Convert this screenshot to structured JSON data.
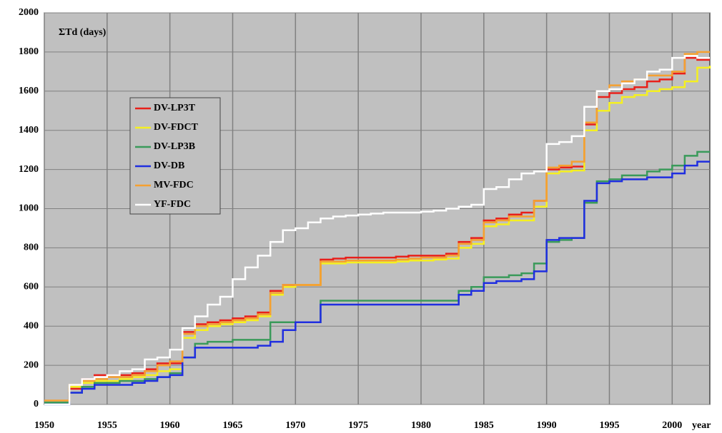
{
  "chart_data": {
    "type": "line",
    "drawstyle": "steps-post",
    "y_label": "ΣTd (days)",
    "x_label": "year",
    "x": [
      1950,
      1951,
      1952,
      1953,
      1954,
      1955,
      1956,
      1957,
      1958,
      1959,
      1960,
      1961,
      1962,
      1963,
      1964,
      1965,
      1966,
      1967,
      1968,
      1969,
      1970,
      1971,
      1972,
      1973,
      1974,
      1975,
      1976,
      1977,
      1978,
      1979,
      1980,
      1981,
      1982,
      1983,
      1984,
      1985,
      1986,
      1987,
      1988,
      1989,
      1990,
      1991,
      1992,
      1993,
      1994,
      1995,
      1996,
      1997,
      1998,
      1999,
      2000,
      2001,
      2002,
      2003
    ],
    "xlim": [
      1950,
      2003
    ],
    "xticks": [
      1950,
      1955,
      1960,
      1965,
      1970,
      1975,
      1980,
      1985,
      1990,
      1995,
      2000
    ],
    "ylim": [
      0,
      2000
    ],
    "yticks": [
      0,
      200,
      400,
      600,
      800,
      1000,
      1200,
      1400,
      1600,
      1800,
      2000
    ],
    "grid": true,
    "legend": "upper left",
    "series": [
      {
        "name": "DV-LP3T",
        "color": "#e8201a",
        "values": [
          10,
          10,
          80,
          130,
          150,
          150,
          150,
          160,
          180,
          210,
          210,
          370,
          410,
          420,
          430,
          440,
          450,
          470,
          580,
          610,
          610,
          610,
          740,
          745,
          750,
          750,
          750,
          750,
          755,
          760,
          760,
          760,
          770,
          830,
          850,
          940,
          950,
          970,
          980,
          1040,
          1200,
          1210,
          1215,
          1430,
          1570,
          1590,
          1610,
          1620,
          1650,
          1660,
          1690,
          1770,
          1760,
          1760
        ]
      },
      {
        "name": "DV-FDCT",
        "color": "#f5f020",
        "values": [
          10,
          10,
          90,
          110,
          120,
          120,
          130,
          140,
          150,
          170,
          180,
          340,
          380,
          400,
          410,
          420,
          430,
          450,
          560,
          600,
          610,
          610,
          720,
          720,
          725,
          725,
          725,
          725,
          730,
          735,
          735,
          740,
          745,
          800,
          820,
          910,
          920,
          940,
          940,
          1010,
          1180,
          1190,
          1195,
          1400,
          1500,
          1540,
          1570,
          1580,
          1600,
          1610,
          1620,
          1650,
          1720,
          1730
        ]
      },
      {
        "name": "DV-LP3B",
        "color": "#3a9a5a",
        "values": [
          10,
          10,
          60,
          90,
          110,
          110,
          120,
          120,
          130,
          140,
          160,
          240,
          310,
          320,
          320,
          330,
          330,
          330,
          420,
          420,
          420,
          420,
          530,
          530,
          530,
          530,
          530,
          530,
          530,
          530,
          530,
          530,
          530,
          580,
          600,
          650,
          650,
          660,
          670,
          720,
          830,
          840,
          850,
          1030,
          1140,
          1150,
          1170,
          1170,
          1190,
          1200,
          1220,
          1270,
          1290,
          1290
        ]
      },
      {
        "name": "DV-DB",
        "color": "#1f2ee0",
        "values": [
          0,
          0,
          60,
          80,
          100,
          100,
          100,
          110,
          120,
          140,
          150,
          240,
          290,
          290,
          290,
          290,
          290,
          300,
          320,
          380,
          420,
          420,
          510,
          510,
          510,
          510,
          510,
          510,
          510,
          510,
          510,
          510,
          510,
          560,
          580,
          620,
          630,
          630,
          640,
          680,
          840,
          850,
          850,
          1040,
          1130,
          1140,
          1150,
          1150,
          1160,
          1160,
          1180,
          1220,
          1240,
          1240
        ]
      },
      {
        "name": "MV-FDC",
        "color": "#f5a030",
        "values": [
          20,
          20,
          100,
          120,
          130,
          140,
          140,
          150,
          170,
          200,
          220,
          360,
          400,
          410,
          420,
          430,
          440,
          460,
          570,
          610,
          610,
          610,
          730,
          730,
          735,
          735,
          735,
          735,
          740,
          745,
          750,
          750,
          760,
          820,
          840,
          930,
          940,
          960,
          960,
          1040,
          1210,
          1220,
          1240,
          1440,
          1600,
          1630,
          1650,
          1660,
          1680,
          1680,
          1700,
          1790,
          1800,
          1800
        ]
      },
      {
        "name": "YF-FDC",
        "color": "#ffffff",
        "values": [
          0,
          0,
          100,
          130,
          140,
          150,
          170,
          180,
          230,
          240,
          280,
          390,
          450,
          510,
          550,
          640,
          700,
          760,
          830,
          890,
          900,
          930,
          950,
          960,
          965,
          970,
          975,
          980,
          980,
          980,
          985,
          990,
          1000,
          1010,
          1020,
          1100,
          1110,
          1150,
          1180,
          1190,
          1330,
          1340,
          1370,
          1520,
          1600,
          1610,
          1640,
          1660,
          1700,
          1710,
          1770,
          1780,
          1770,
          1770
        ]
      }
    ]
  }
}
